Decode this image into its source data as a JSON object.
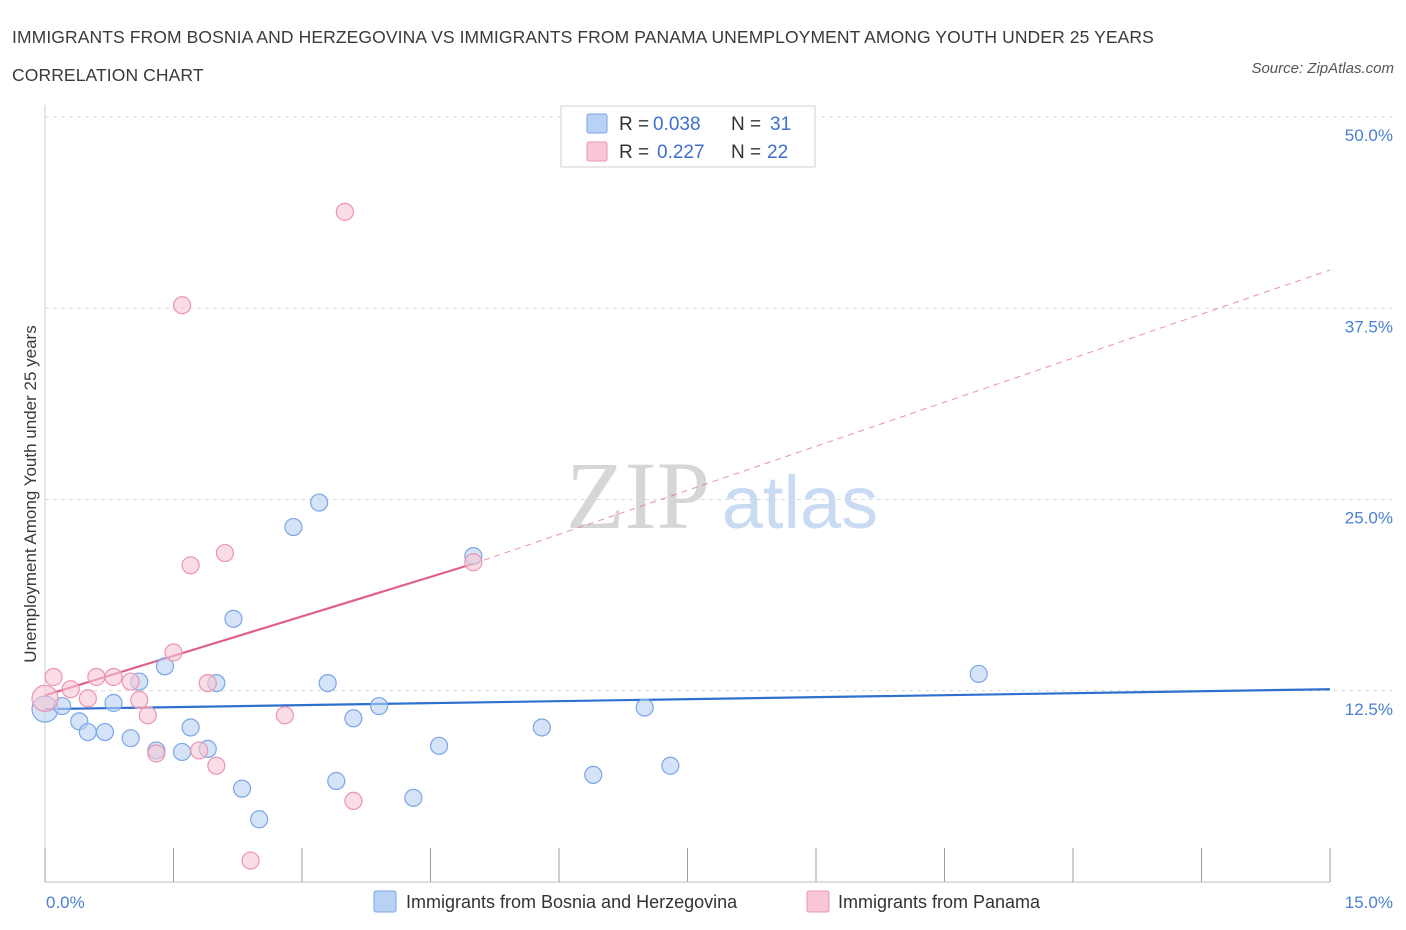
{
  "title": "IMMIGRANTS FROM BOSNIA AND HERZEGOVINA VS IMMIGRANTS FROM PANAMA UNEMPLOYMENT AMONG YOUTH UNDER 25 YEARS CORRELATION CHART",
  "source": "Source: ZipAtlas.com",
  "watermark": {
    "zip": "ZIP",
    "atlas": "atlas"
  },
  "colors": {
    "blue_fill": "#b9d1f4",
    "blue_stroke": "#7aa6e6",
    "blue_line": "#2f6fcf",
    "pink_fill": "#f8c6d4",
    "pink_stroke": "#eb95b0",
    "pink_line": "#e0608c",
    "grid": "#d9d9d9",
    "tick_text": "#4a7fd0"
  },
  "legend": {
    "rows": [
      {
        "r_label": "R =",
        "r_value": "0.038",
        "n_label": "N =",
        "n_value": "31"
      },
      {
        "r_label": "R =",
        "r_value": "0.227",
        "n_label": "N =",
        "n_value": "22"
      }
    ]
  },
  "chart_data": {
    "type": "scatter",
    "title": "IMMIGRANTS FROM BOSNIA AND HERZEGOVINA VS IMMIGRANTS FROM PANAMA UNEMPLOYMENT AMONG YOUTH UNDER 25 YEARS CORRELATION CHART",
    "xlabel": "",
    "ylabel": "Unemployment Among Youth under 25 years",
    "xlim": [
      0,
      15
    ],
    "ylim": [
      0,
      50
    ],
    "x_tick_labels": [
      "0.0%",
      "15.0%"
    ],
    "y_tick_labels": [
      "12.5%",
      "25.0%",
      "37.5%",
      "50.0%"
    ],
    "y_ticks": [
      12.5,
      25.0,
      37.5,
      50.0
    ],
    "grid": true,
    "series": [
      {
        "name": "Immigrants from Bosnia and Herzegovina",
        "color": "blue",
        "R": 0.038,
        "N": 31,
        "trend": {
          "x0": 0.0,
          "y0": 11.3,
          "x1": 15.0,
          "y1": 12.6,
          "dashed_extension": false
        },
        "points": [
          [
            0.0,
            11.3
          ],
          [
            0.2,
            11.5
          ],
          [
            0.4,
            10.5
          ],
          [
            0.5,
            9.8
          ],
          [
            0.7,
            9.8
          ],
          [
            0.8,
            11.7
          ],
          [
            1.0,
            9.4
          ],
          [
            1.1,
            13.1
          ],
          [
            1.3,
            8.6
          ],
          [
            1.4,
            14.1
          ],
          [
            1.6,
            8.5
          ],
          [
            1.7,
            10.1
          ],
          [
            1.9,
            8.7
          ],
          [
            2.0,
            13.0
          ],
          [
            2.2,
            17.2
          ],
          [
            2.3,
            6.1
          ],
          [
            2.5,
            4.1
          ],
          [
            2.9,
            23.2
          ],
          [
            3.2,
            24.8
          ],
          [
            3.3,
            13.0
          ],
          [
            3.4,
            6.6
          ],
          [
            3.6,
            10.7
          ],
          [
            3.9,
            11.5
          ],
          [
            4.3,
            5.5
          ],
          [
            4.6,
            8.9
          ],
          [
            5.0,
            21.3
          ],
          [
            5.8,
            10.1
          ],
          [
            6.4,
            7.0
          ],
          [
            7.0,
            11.4
          ],
          [
            7.3,
            7.6
          ],
          [
            10.9,
            13.6
          ]
        ]
      },
      {
        "name": "Immigrants from Panama",
        "color": "pink",
        "R": 0.227,
        "N": 22,
        "trend": {
          "x0": 0.0,
          "y0": 12.2,
          "x1": 5.0,
          "y1": 20.8,
          "dashed_to_x": 15.0,
          "dashed_to_y": 40.0
        },
        "points": [
          [
            0.0,
            12.0
          ],
          [
            0.1,
            13.4
          ],
          [
            0.3,
            12.6
          ],
          [
            0.5,
            12.0
          ],
          [
            0.6,
            13.4
          ],
          [
            0.8,
            13.4
          ],
          [
            1.0,
            13.1
          ],
          [
            1.1,
            11.9
          ],
          [
            1.2,
            10.9
          ],
          [
            1.3,
            8.4
          ],
          [
            1.5,
            15.0
          ],
          [
            1.7,
            20.7
          ],
          [
            1.8,
            8.6
          ],
          [
            1.9,
            13.0
          ],
          [
            2.0,
            7.6
          ],
          [
            2.1,
            21.5
          ],
          [
            2.4,
            1.4
          ],
          [
            2.8,
            10.9
          ],
          [
            3.5,
            43.8
          ],
          [
            3.6,
            5.3
          ],
          [
            1.6,
            37.7
          ],
          [
            5.0,
            20.9
          ]
        ]
      }
    ]
  },
  "bottom_legend": [
    {
      "label": "Immigrants from Bosnia and Herzegovina"
    },
    {
      "label": "Immigrants from Panama"
    }
  ]
}
